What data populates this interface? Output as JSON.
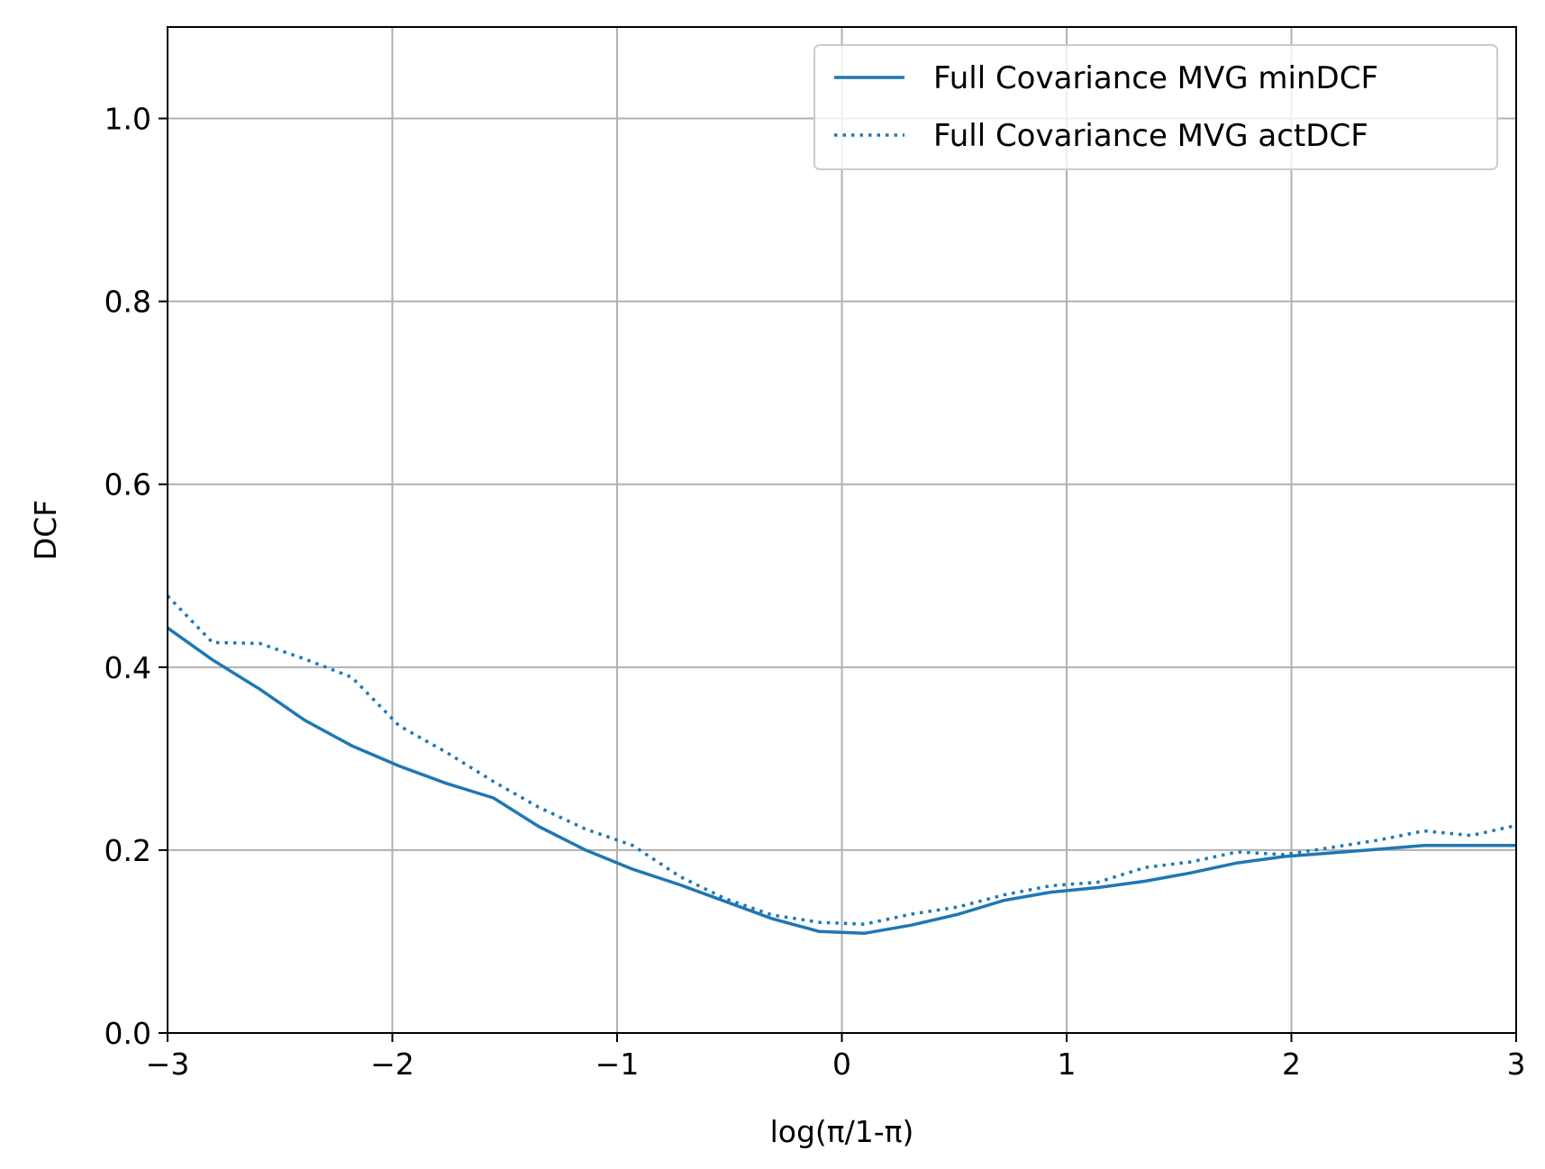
{
  "chart_data": {
    "type": "line",
    "title": "",
    "xlabel": "log(π/1-π)",
    "ylabel": "DCF",
    "xlim": [
      -3,
      3
    ],
    "ylim": [
      0,
      1.1
    ],
    "xticks": [
      -3,
      -2,
      -1,
      0,
      1,
      2,
      3
    ],
    "xtick_labels": [
      "−3",
      "−2",
      "−1",
      "0",
      "1",
      "2",
      "3"
    ],
    "yticks": [
      0.0,
      0.2,
      0.4,
      0.6,
      0.8,
      1.0
    ],
    "ytick_labels": [
      "0.0",
      "0.2",
      "0.4",
      "0.6",
      "0.8",
      "1.0"
    ],
    "grid": true,
    "legend_position": "top-right",
    "series": [
      {
        "name": "Full Covariance MVG minDCF",
        "style": "solid",
        "color": "#1f77b4",
        "x": [
          -3.0,
          -2.8,
          -2.59,
          -2.39,
          -2.18,
          -1.97,
          -1.76,
          -1.55,
          -1.35,
          -1.14,
          -0.93,
          -0.72,
          -0.52,
          -0.31,
          -0.1,
          0.1,
          0.31,
          0.52,
          0.72,
          0.93,
          1.14,
          1.35,
          1.55,
          1.76,
          1.97,
          2.18,
          2.39,
          2.59,
          2.8,
          3.0
        ],
        "y": [
          0.443,
          0.408,
          0.376,
          0.342,
          0.314,
          0.292,
          0.273,
          0.257,
          0.226,
          0.2,
          0.179,
          0.162,
          0.144,
          0.125,
          0.111,
          0.109,
          0.118,
          0.13,
          0.145,
          0.154,
          0.159,
          0.166,
          0.175,
          0.186,
          0.193,
          0.197,
          0.201,
          0.205,
          0.205,
          0.205
        ]
      },
      {
        "name": "Full Covariance MVG actDCF",
        "style": "dotted",
        "color": "#1f77b4",
        "x": [
          -3.0,
          -2.8,
          -2.59,
          -2.39,
          -2.18,
          -1.97,
          -1.76,
          -1.55,
          -1.35,
          -1.14,
          -0.93,
          -0.72,
          -0.52,
          -0.31,
          -0.1,
          0.1,
          0.31,
          0.52,
          0.72,
          0.93,
          1.14,
          1.35,
          1.55,
          1.76,
          1.97,
          2.18,
          2.39,
          2.59,
          2.8,
          3.0
        ],
        "y": [
          0.478,
          0.427,
          0.426,
          0.409,
          0.389,
          0.336,
          0.307,
          0.275,
          0.247,
          0.223,
          0.205,
          0.171,
          0.147,
          0.129,
          0.121,
          0.119,
          0.13,
          0.138,
          0.151,
          0.161,
          0.165,
          0.181,
          0.187,
          0.198,
          0.195,
          0.203,
          0.211,
          0.221,
          0.216,
          0.227
        ]
      }
    ]
  }
}
